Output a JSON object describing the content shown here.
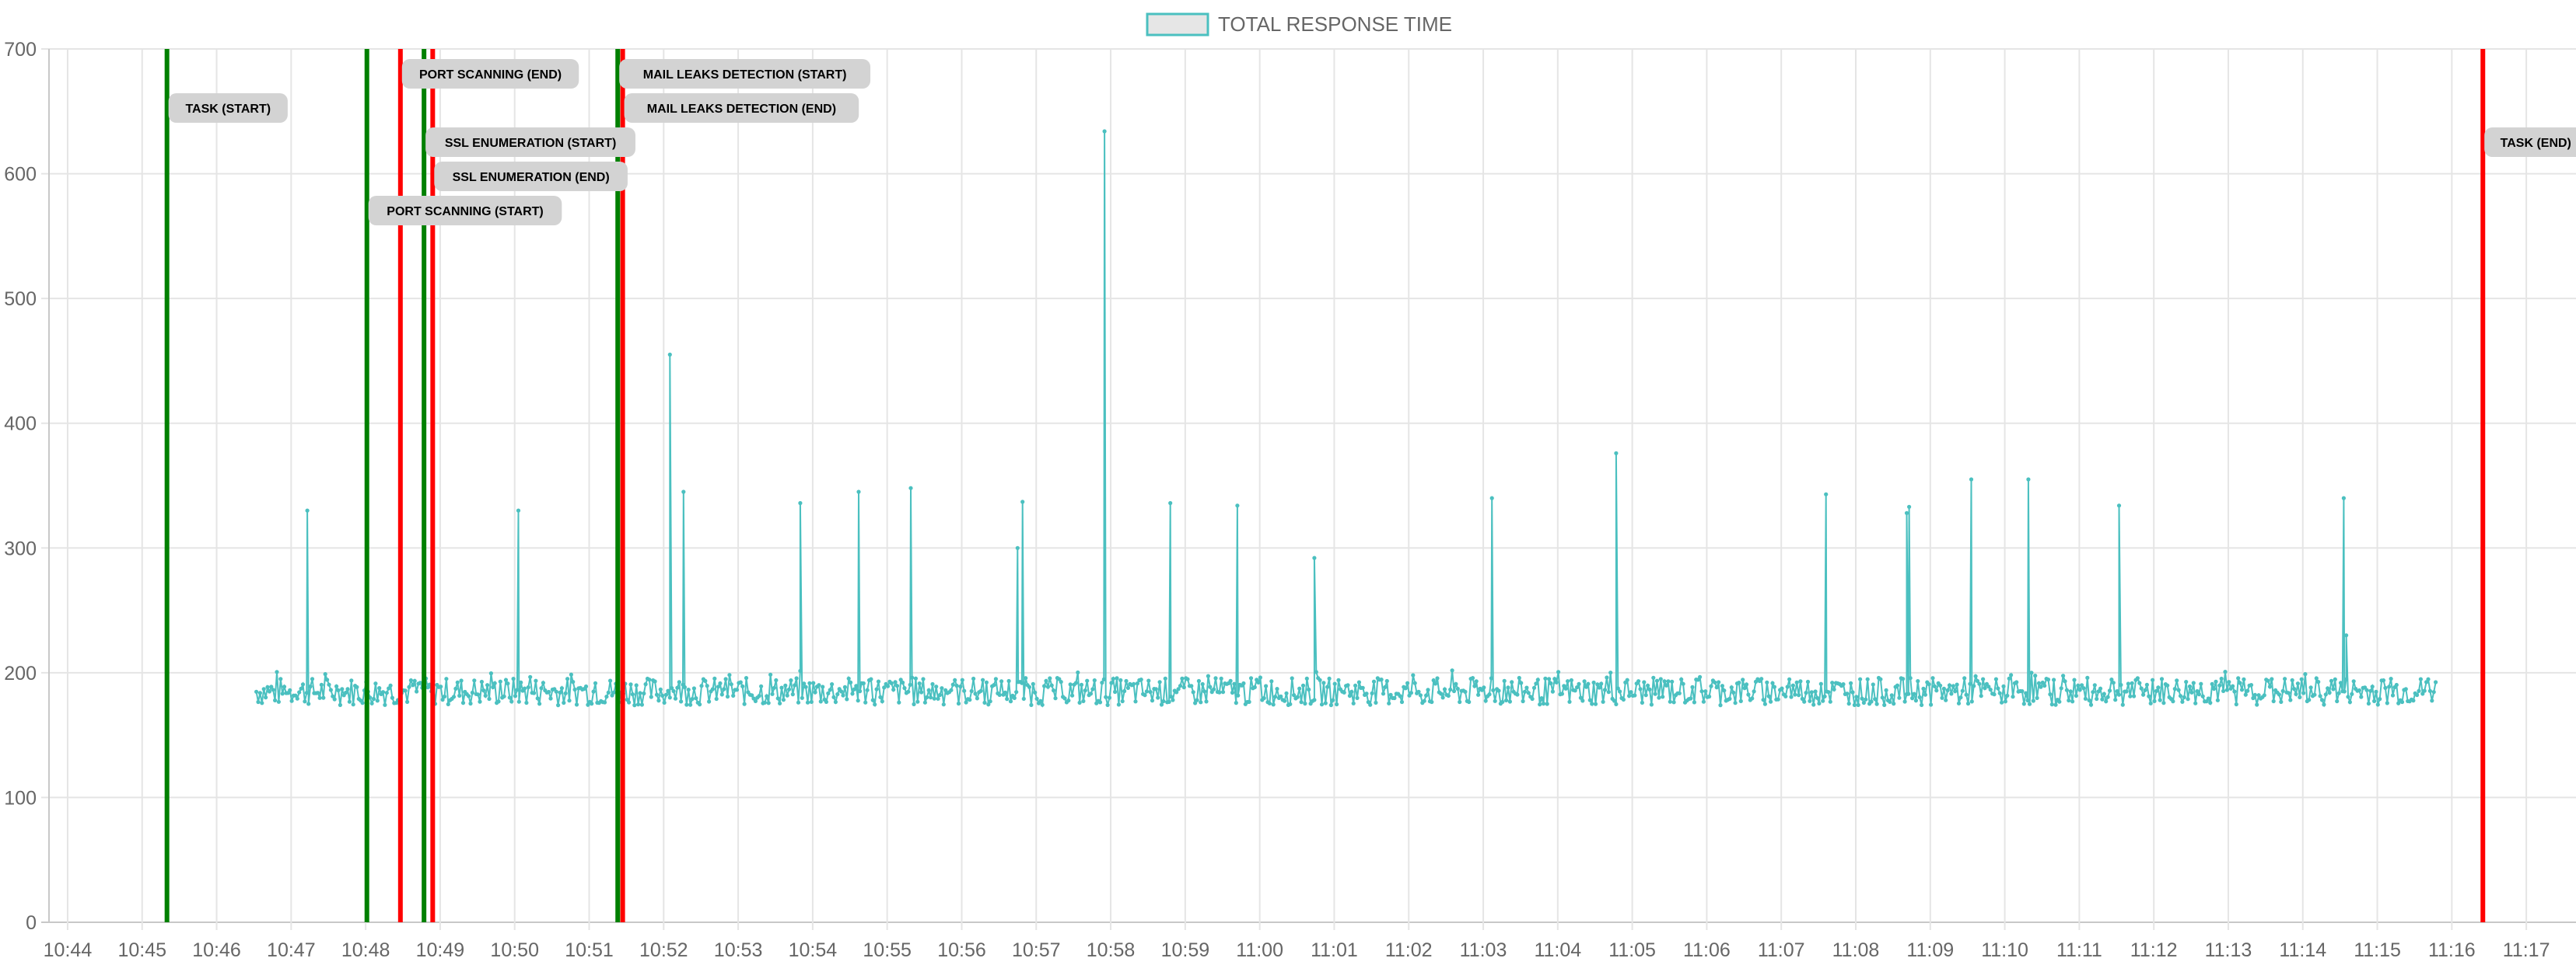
{
  "chart_data": {
    "type": "line",
    "legend": {
      "position": "top",
      "entries": [
        {
          "name": "TOTAL RESPONSE TIME",
          "color": "#4bc0c0",
          "fill": "#e6e6e6"
        }
      ]
    },
    "ylim": [
      0,
      700
    ],
    "yticks": [
      0,
      100,
      200,
      300,
      400,
      500,
      600,
      700
    ],
    "xlim": [
      "10:43:45",
      "11:17:40"
    ],
    "xticks": [
      "10:44",
      "10:45",
      "10:46",
      "10:47",
      "10:48",
      "10:49",
      "10:50",
      "10:51",
      "10:52",
      "10:53",
      "10:54",
      "10:55",
      "10:56",
      "10:57",
      "10:58",
      "10:59",
      "11:00",
      "11:01",
      "11:02",
      "11:03",
      "11:04",
      "11:05",
      "11:06",
      "11:07",
      "11:08",
      "11:09",
      "11:10",
      "11:11",
      "11:12",
      "11:13",
      "11:14",
      "11:15",
      "11:16",
      "11:17"
    ],
    "grid": true,
    "series": [
      {
        "name": "TOTAL RESPONSE TIME",
        "color": "#4bc0c0",
        "x_start": "10:46:32",
        "x_end": "11:15:48",
        "baseline": 185,
        "spikes": [
          {
            "x": "10:47:13",
            "y": 330
          },
          {
            "x": "10:50:03",
            "y": 330
          },
          {
            "x": "10:52:05",
            "y": 455
          },
          {
            "x": "10:52:16",
            "y": 345
          },
          {
            "x": "10:53:50",
            "y": 336
          },
          {
            "x": "10:54:37",
            "y": 345
          },
          {
            "x": "10:55:19",
            "y": 348
          },
          {
            "x": "10:56:45",
            "y": 300
          },
          {
            "x": "10:56:49",
            "y": 337
          },
          {
            "x": "10:57:55",
            "y": 634
          },
          {
            "x": "10:58:48",
            "y": 336
          },
          {
            "x": "10:59:42",
            "y": 334
          },
          {
            "x": "11:00:44",
            "y": 292
          },
          {
            "x": "11:03:07",
            "y": 340
          },
          {
            "x": "11:04:47",
            "y": 376
          },
          {
            "x": "11:07:36",
            "y": 343
          },
          {
            "x": "11:08:41",
            "y": 328
          },
          {
            "x": "11:08:43",
            "y": 333
          },
          {
            "x": "11:09:33",
            "y": 355
          },
          {
            "x": "11:10:19",
            "y": 355
          },
          {
            "x": "11:11:32",
            "y": 334
          },
          {
            "x": "11:14:33",
            "y": 340
          },
          {
            "x": "11:14:35",
            "y": 230
          }
        ]
      }
    ],
    "annotations": [
      {
        "label": "TASK (START)",
        "x": "10:45:20",
        "color": "#008000",
        "label_row": 1
      },
      {
        "label": "PORT SCANNING (START)",
        "x": "10:48:01",
        "color": "#008000",
        "label_row": 4
      },
      {
        "label": "PORT SCANNING (END)",
        "x": "10:48:28",
        "color": "#ff0000",
        "label_row": 0
      },
      {
        "label": "SSL ENUMERATION (START)",
        "x": "10:48:47",
        "color": "#008000",
        "label_row": 2
      },
      {
        "label": "SSL ENUMERATION (END)",
        "x": "10:48:54",
        "color": "#ff0000",
        "label_row": 3
      },
      {
        "label": "MAIL LEAKS DETECTION (START)",
        "x": "10:51:23",
        "color": "#008000",
        "label_row": 0
      },
      {
        "label": "MAIL LEAKS DETECTION (END)",
        "x": "10:51:27",
        "color": "#ff0000",
        "label_row": 1
      },
      {
        "label": "TASK (END)",
        "x": "11:16:25",
        "color": "#ff0000",
        "label_row": 2
      }
    ]
  }
}
